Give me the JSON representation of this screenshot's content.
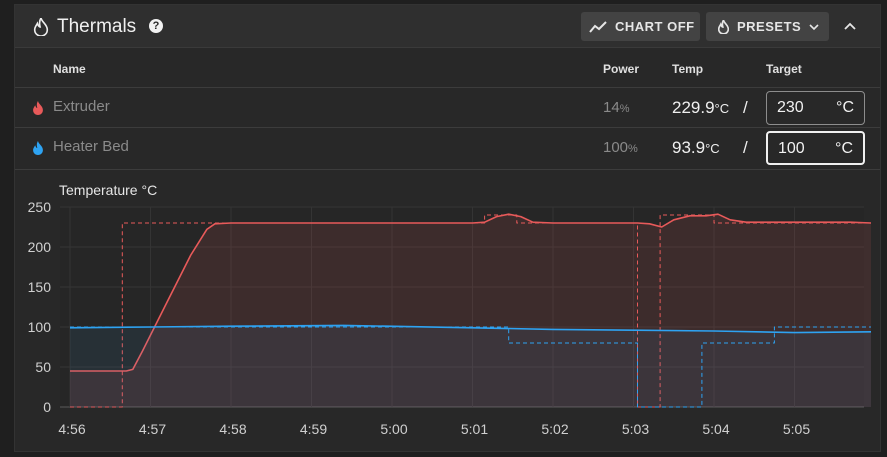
{
  "header": {
    "title": "Thermals",
    "help_icon": "?",
    "chart_button": "CHART OFF",
    "presets_button": "PRESETS"
  },
  "columns": {
    "name": "Name",
    "power": "Power",
    "temp": "Temp",
    "target": "Target"
  },
  "heaters": [
    {
      "name": "Extruder",
      "power_value": "14",
      "power_unit": "%",
      "temp_value": "229.9",
      "temp_unit": "°C",
      "separator": "/",
      "target": "230",
      "target_unit": "°C",
      "color": "#e85a5a"
    },
    {
      "name": "Heater Bed",
      "power_value": "100",
      "power_unit": "%",
      "temp_value": "93.9",
      "temp_unit": "°C",
      "separator": "/",
      "target": "100",
      "target_unit": "°C",
      "color": "#2ea3f2"
    }
  ],
  "chart_data": {
    "type": "line",
    "title": "Temperature °C",
    "ylim": [
      0,
      250
    ],
    "y_ticks": [
      "0",
      "50",
      "100",
      "150",
      "200",
      "250"
    ],
    "x_ticks": [
      "4:56",
      "4:57",
      "4:58",
      "4:59",
      "5:00",
      "5:01",
      "5:02",
      "5:03",
      "5:04",
      "5:05"
    ],
    "grid": true,
    "series": [
      {
        "name": "Extruder",
        "style": "solid",
        "color": "#e85a5a",
        "points": [
          [
            0,
            45
          ],
          [
            0.7,
            45
          ],
          [
            0.78,
            47
          ],
          [
            0.9,
            70
          ],
          [
            1.2,
            130
          ],
          [
            1.5,
            190
          ],
          [
            1.7,
            222
          ],
          [
            1.8,
            229
          ],
          [
            2,
            230
          ],
          [
            3,
            230
          ],
          [
            4,
            230
          ],
          [
            5,
            230
          ],
          [
            5.15,
            231
          ],
          [
            5.3,
            238
          ],
          [
            5.45,
            241
          ],
          [
            5.6,
            238
          ],
          [
            5.75,
            231
          ],
          [
            6,
            230
          ],
          [
            6.5,
            230
          ],
          [
            7.05,
            230
          ],
          [
            7.2,
            229
          ],
          [
            7.35,
            225
          ],
          [
            7.5,
            234
          ],
          [
            7.7,
            239
          ],
          [
            7.9,
            239
          ],
          [
            8.05,
            241
          ],
          [
            8.2,
            234
          ],
          [
            8.4,
            231
          ],
          [
            9,
            231
          ],
          [
            9.7,
            231
          ],
          [
            9.95,
            230
          ]
        ]
      },
      {
        "name": "Extruder Target",
        "style": "dashed",
        "color": "#e85a5a",
        "points": [
          [
            0,
            0
          ],
          [
            0.65,
            0
          ],
          [
            0.65,
            230
          ],
          [
            5.15,
            230
          ],
          [
            5.15,
            240
          ],
          [
            5.55,
            240
          ],
          [
            5.55,
            230
          ],
          [
            7.05,
            230
          ],
          [
            7.05,
            0
          ],
          [
            7.33,
            0
          ],
          [
            7.33,
            240
          ],
          [
            8.0,
            240
          ],
          [
            8.0,
            230
          ],
          [
            9.95,
            230
          ]
        ]
      },
      {
        "name": "Heater Bed",
        "style": "solid",
        "color": "#2ea3f2",
        "points": [
          [
            0,
            99
          ],
          [
            1,
            100
          ],
          [
            2,
            101
          ],
          [
            3.4,
            102
          ],
          [
            5,
            99
          ],
          [
            6,
            97
          ],
          [
            7,
            96
          ],
          [
            8,
            95
          ],
          [
            9,
            93
          ],
          [
            9.95,
            94
          ]
        ]
      },
      {
        "name": "Heater Bed Target",
        "style": "dashed",
        "color": "#2ea3f2",
        "points": [
          [
            0,
            100
          ],
          [
            5.45,
            100
          ],
          [
            5.45,
            80
          ],
          [
            7.05,
            80
          ],
          [
            7.05,
            0
          ],
          [
            7.85,
            0
          ],
          [
            7.85,
            80
          ],
          [
            8.75,
            80
          ],
          [
            8.75,
            100
          ],
          [
            9.95,
            100
          ]
        ]
      }
    ]
  }
}
